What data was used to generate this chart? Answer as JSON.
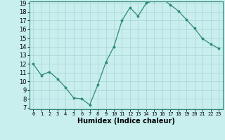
{
  "x": [
    0,
    1,
    2,
    3,
    4,
    5,
    6,
    7,
    8,
    9,
    10,
    11,
    12,
    13,
    14,
    15,
    16,
    17,
    18,
    19,
    20,
    21,
    22,
    23
  ],
  "y": [
    12,
    10.7,
    11.1,
    10.3,
    9.3,
    8.1,
    8.0,
    7.3,
    9.6,
    12.2,
    14.0,
    17.0,
    18.5,
    17.5,
    19.0,
    19.3,
    19.5,
    18.8,
    18.1,
    17.1,
    16.1,
    14.9,
    14.3,
    13.8
  ],
  "xlabel": "Humidex (Indice chaleur)",
  "ylim": [
    7,
    19
  ],
  "xlim": [
    -0.5,
    23.5
  ],
  "yticks": [
    7,
    8,
    9,
    10,
    11,
    12,
    13,
    14,
    15,
    16,
    17,
    18,
    19
  ],
  "xticks": [
    0,
    1,
    2,
    3,
    4,
    5,
    6,
    7,
    8,
    9,
    10,
    11,
    12,
    13,
    14,
    15,
    16,
    17,
    18,
    19,
    20,
    21,
    22,
    23
  ],
  "line_color": "#2e8b72",
  "marker_color": "#2e8b72",
  "bg_color": "#c8eeee",
  "grid_color": "#b0d8d8",
  "fig_bg": "#c8eeee",
  "spine_color": "#2e8b72",
  "tick_color": "#000000",
  "xlabel_fontsize": 7,
  "ytick_fontsize": 6,
  "xtick_fontsize": 5
}
